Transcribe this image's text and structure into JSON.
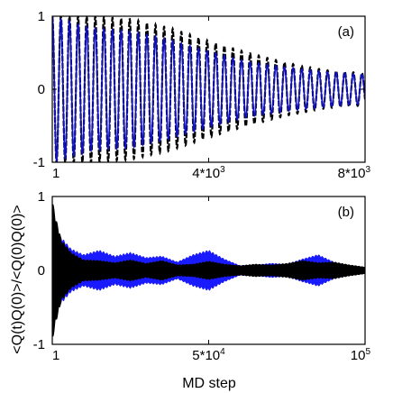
{
  "figure": {
    "ylabel": "<Q(t)Q(0)>/<Q(0)Q(0)>",
    "xlabel": "MD step"
  },
  "chart_data": [
    {
      "type": "line",
      "panel_label": "(a)",
      "xlim": [
        1,
        8000
      ],
      "ylim": [
        -1,
        1
      ],
      "xticks": [
        {
          "value": 1,
          "base": "1",
          "exp": ""
        },
        {
          "value": 4000,
          "base": "4*10",
          "exp": "3"
        },
        {
          "value": 8000,
          "base": "8*10",
          "exp": "3"
        }
      ],
      "yticks": [
        {
          "value": 1,
          "label": "1"
        },
        {
          "value": 0,
          "label": "0"
        },
        {
          "value": -1,
          "label": "-1"
        }
      ],
      "grid": false,
      "series": [
        {
          "color": "#000000",
          "style": "dashed",
          "period": 220,
          "envelope": {
            "x": [
              1,
              1000,
              2000,
              3000,
              4000,
              5000,
              6000,
              7000,
              8000
            ],
            "amp": [
              1.0,
              1.0,
              0.96,
              0.84,
              0.66,
              0.5,
              0.36,
              0.26,
              0.22
            ]
          }
        },
        {
          "color": "#1010c8",
          "style": "solid",
          "period": 220,
          "envelope": {
            "x": [
              1,
              1000,
              2000,
              3000,
              4000,
              5000,
              6000,
              7000,
              8000
            ],
            "amp": [
              1.0,
              0.84,
              0.8,
              0.68,
              0.52,
              0.38,
              0.3,
              0.24,
              0.2
            ]
          }
        }
      ]
    },
    {
      "type": "area",
      "panel_label": "(b)",
      "xlim": [
        1,
        100000
      ],
      "ylim": [
        -1,
        1
      ],
      "xticks": [
        {
          "value": 1,
          "base": "1",
          "exp": ""
        },
        {
          "value": 50000,
          "base": "5*10",
          "exp": "4"
        },
        {
          "value": 100000,
          "base": "10",
          "exp": "5"
        }
      ],
      "yticks": [
        {
          "value": 1,
          "label": "1"
        },
        {
          "value": 0,
          "label": "0"
        },
        {
          "value": -1,
          "label": "-1"
        }
      ],
      "grid": false,
      "series": [
        {
          "color": "#1a1aff",
          "envelope": {
            "x": [
              1,
              3000,
              6000,
              10000,
              15000,
              20000,
              25000,
              30000,
              35000,
              40000,
              45000,
              50000,
              55000,
              60000,
              65000,
              70000,
              75000,
              80000,
              85000,
              90000,
              95000,
              100000
            ],
            "amp": [
              0.55,
              0.45,
              0.3,
              0.22,
              0.28,
              0.2,
              0.25,
              0.18,
              0.2,
              0.12,
              0.22,
              0.28,
              0.16,
              0.07,
              0.08,
              0.1,
              0.09,
              0.16,
              0.22,
              0.12,
              0.07,
              0.05
            ]
          }
        },
        {
          "color": "#000000",
          "envelope": {
            "x": [
              1,
              1000,
              3000,
              6000,
              10000,
              15000,
              20000,
              25000,
              30000,
              35000,
              40000,
              45000,
              50000,
              55000,
              60000,
              65000,
              70000,
              75000,
              80000,
              85000,
              90000,
              95000,
              100000
            ],
            "amp": [
              1.0,
              0.75,
              0.42,
              0.25,
              0.15,
              0.14,
              0.11,
              0.15,
              0.1,
              0.14,
              0.08,
              0.09,
              0.13,
              0.09,
              0.07,
              0.09,
              0.08,
              0.1,
              0.14,
              0.11,
              0.12,
              0.08,
              0.05
            ]
          }
        }
      ]
    }
  ]
}
